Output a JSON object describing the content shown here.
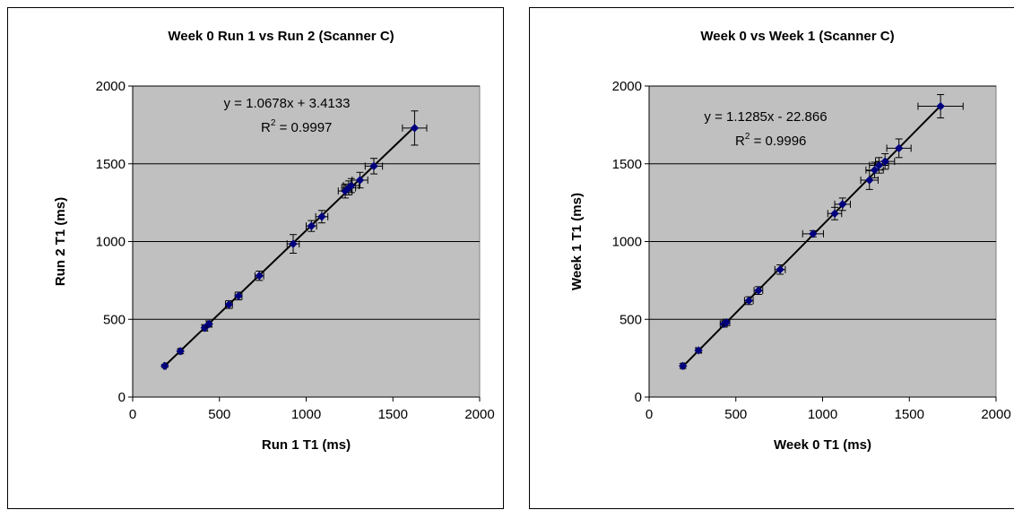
{
  "colors": {
    "plot_bg": "#c0c0c0",
    "marker": "#00007f",
    "line": "#000000",
    "grid": "#000000"
  },
  "chart_data": [
    {
      "type": "scatter",
      "title": "Week 0 Run 1 vs Run 2 (Scanner C)",
      "xlabel": "Run 1 T1 (ms)",
      "ylabel": "Run 2 T1 (ms)",
      "xlim": [
        0,
        2000
      ],
      "ylim": [
        0,
        2000
      ],
      "xticks": [
        "0",
        "500",
        "1000",
        "1500",
        "2000"
      ],
      "yticks": [
        "0",
        "500",
        "1000",
        "1500",
        "2000"
      ],
      "grid": "horizontal",
      "equation": "y = 1.0678x + 3.4133",
      "r2_prefix": "R",
      "r2_sup": "2",
      "r2_value": " = 0.9997",
      "trendline": {
        "slope": 1.0678,
        "intercept": 3.4133
      },
      "series": [
        {
          "x": [
            185,
            275,
            415,
            440,
            555,
            610,
            730,
            925,
            1030,
            1090,
            1225,
            1245,
            1260,
            1310,
            1390,
            1625
          ],
          "y": [
            200,
            295,
            445,
            470,
            595,
            650,
            780,
            985,
            1100,
            1160,
            1325,
            1345,
            1360,
            1395,
            1485,
            1730
          ],
          "xerr": [
            8,
            10,
            15,
            15,
            20,
            20,
            25,
            35,
            30,
            35,
            40,
            40,
            45,
            45,
            50,
            70
          ],
          "yerr": [
            10,
            15,
            20,
            20,
            25,
            25,
            30,
            60,
            35,
            40,
            45,
            45,
            45,
            50,
            50,
            110
          ]
        }
      ]
    },
    {
      "type": "scatter",
      "title": "Week 0 vs Week 1 (Scanner C)",
      "xlabel": "Week 0 T1 (ms)",
      "ylabel": "Week 1 T1 (ms)",
      "xlim": [
        0,
        2000
      ],
      "ylim": [
        0,
        2000
      ],
      "xticks": [
        "0",
        "500",
        "1000",
        "1500",
        "2000"
      ],
      "yticks": [
        "0",
        "500",
        "1000",
        "1500",
        "2000"
      ],
      "grid": "horizontal",
      "equation": "y = 1.1285x - 22.866",
      "r2_prefix": "R",
      "r2_sup": "2",
      "r2_value": " = 0.9996",
      "trendline": {
        "slope": 1.1285,
        "intercept": -22.866
      },
      "series": [
        {
          "x": [
            195,
            285,
            430,
            445,
            575,
            630,
            755,
            945,
            1070,
            1115,
            1270,
            1300,
            1325,
            1360,
            1440,
            1680
          ],
          "y": [
            200,
            300,
            470,
            480,
            620,
            685,
            820,
            1050,
            1180,
            1240,
            1395,
            1460,
            1490,
            1515,
            1600,
            1870
          ],
          "xerr": [
            10,
            15,
            20,
            20,
            25,
            25,
            30,
            60,
            40,
            45,
            50,
            50,
            55,
            55,
            70,
            130
          ],
          "yerr": [
            15,
            15,
            20,
            20,
            25,
            25,
            30,
            20,
            40,
            40,
            60,
            50,
            50,
            50,
            60,
            75
          ]
        }
      ]
    }
  ]
}
